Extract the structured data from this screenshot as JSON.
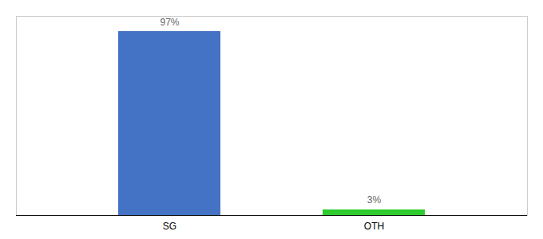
{
  "chart_data": {
    "type": "bar",
    "categories": [
      "SG",
      "OTH"
    ],
    "values": [
      97,
      3
    ],
    "value_labels": [
      "97%",
      "3%"
    ],
    "colors": [
      "#4472c4",
      "#2ecc2e"
    ],
    "data_labels": true,
    "ylim": [
      0,
      105
    ],
    "tick_labels": "x"
  }
}
